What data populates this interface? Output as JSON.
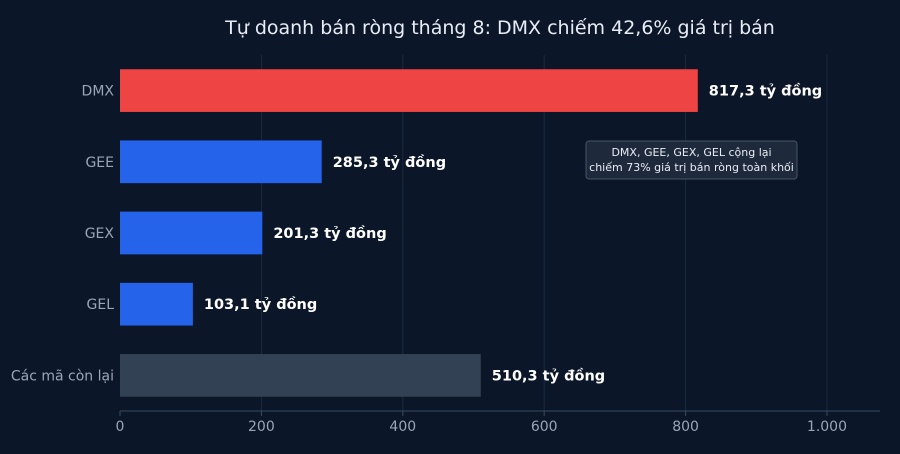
{
  "chart_data": {
    "type": "bar",
    "orientation": "horizontal",
    "title": "Tự doanh bán ròng tháng 8: DMX chiếm 42,6% giá trị bán",
    "xlabel": "",
    "ylabel": "",
    "xlim": [
      0,
      1075
    ],
    "xticks": [
      0,
      200,
      400,
      600,
      800,
      1000
    ],
    "xtick_labels": [
      "0",
      "200",
      "400",
      "600",
      "800",
      "1.000"
    ],
    "grid": true,
    "legend": "none",
    "categories": [
      "DMX",
      "GEE",
      "GEX",
      "GEL",
      "Các mã còn lại"
    ],
    "values": [
      817.3,
      285.3,
      201.3,
      103.1,
      510.3
    ],
    "value_labels": [
      "817,3 tỷ đồng",
      "285,3 tỷ đồng",
      "201,3 tỷ đồng",
      "103,1 tỷ đồng",
      "510,3 tỷ đồng"
    ],
    "bar_colors": [
      "#ef4444",
      "#2563eb",
      "#2563eb",
      "#2563eb",
      "#334155"
    ],
    "annotation": {
      "lines": [
        "DMX, GEE, GEX, GEL cộng lại",
        "chiếm 73% giá trị bán ròng toàn khối"
      ]
    }
  },
  "colors": {
    "background": "#0b1628",
    "grid": "#1c2a3f",
    "axis_line": "#3a4a62",
    "text_muted": "#9aa6b8",
    "annotation_bg": "#1e293b",
    "annotation_border": "#475569"
  }
}
